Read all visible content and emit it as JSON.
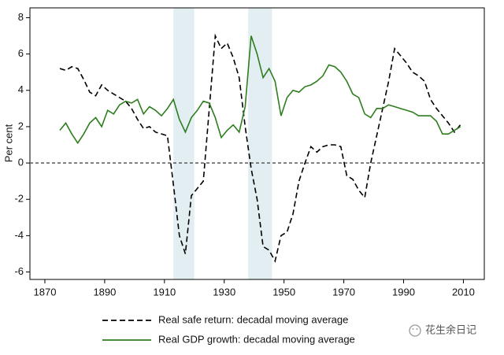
{
  "chart_data": {
    "type": "line",
    "y_label": "Per cent",
    "x": [
      1875,
      1877,
      1879,
      1881,
      1883,
      1885,
      1887,
      1889,
      1891,
      1893,
      1895,
      1897,
      1899,
      1901,
      1903,
      1905,
      1907,
      1909,
      1911,
      1913,
      1915,
      1917,
      1919,
      1921,
      1923,
      1925,
      1927,
      1929,
      1931,
      1933,
      1935,
      1937,
      1939,
      1941,
      1943,
      1945,
      1947,
      1949,
      1951,
      1953,
      1955,
      1957,
      1959,
      1961,
      1963,
      1965,
      1967,
      1969,
      1971,
      1973,
      1975,
      1977,
      1979,
      1981,
      1983,
      1985,
      1987,
      1989,
      1991,
      1993,
      1995,
      1997,
      1999,
      2001,
      2003,
      2005,
      2007,
      2009
    ],
    "series": [
      {
        "name": "Real safe return: decadal moving average",
        "color": "#000000",
        "dash": true,
        "values": [
          5.2,
          5.1,
          5.3,
          5.2,
          4.6,
          3.9,
          3.7,
          4.3,
          4.0,
          3.8,
          3.6,
          3.4,
          3.0,
          2.4,
          1.9,
          2.0,
          1.7,
          1.6,
          1.5,
          -1.2,
          -4.0,
          -5.0,
          -1.8,
          -1.4,
          -1.0,
          3.0,
          7.0,
          6.3,
          6.6,
          5.8,
          4.7,
          2.0,
          -0.3,
          -2.0,
          -4.6,
          -4.8,
          -5.4,
          -4.0,
          -3.8,
          -2.8,
          -1.0,
          0.0,
          0.9,
          0.6,
          0.9,
          1.0,
          1.0,
          0.9,
          -0.7,
          -0.9,
          -1.5,
          -1.9,
          0.0,
          1.5,
          3.0,
          4.5,
          6.3,
          5.9,
          5.5,
          5.0,
          4.8,
          4.5,
          3.5,
          3.0,
          2.6,
          2.2,
          1.7,
          2.1
        ]
      },
      {
        "name": "Real GDP growth: decadal moving average",
        "color": "#2e7d1f",
        "dash": false,
        "values": [
          1.8,
          2.2,
          1.6,
          1.1,
          1.6,
          2.2,
          2.5,
          2.0,
          2.9,
          2.7,
          3.2,
          3.4,
          3.3,
          3.5,
          2.7,
          3.1,
          2.9,
          2.6,
          3.0,
          3.5,
          2.4,
          1.7,
          2.5,
          2.9,
          3.4,
          3.3,
          2.5,
          1.4,
          1.8,
          2.1,
          1.7,
          3.1,
          7.0,
          6.0,
          4.7,
          5.2,
          4.5,
          2.6,
          3.6,
          4.0,
          3.9,
          4.2,
          4.3,
          4.5,
          4.8,
          5.4,
          5.3,
          5.0,
          4.5,
          3.8,
          3.6,
          2.7,
          2.5,
          3.0,
          3.0,
          3.2,
          3.1,
          3.0,
          2.9,
          2.8,
          2.6,
          2.6,
          2.6,
          2.3,
          1.6,
          1.6,
          1.8,
          2.0
        ]
      }
    ],
    "shaded_periods": [
      [
        1913,
        1920
      ],
      [
        1938,
        1946
      ]
    ],
    "shade_color": "#e3eef2",
    "reference_line": 0,
    "xlim": [
      1865,
      2017
    ],
    "ylim": [
      -6.41,
      8.54
    ],
    "xticks": [
      1870,
      1890,
      1910,
      1930,
      1950,
      1970,
      1990,
      2010
    ],
    "yticks": [
      -6,
      -4,
      -2,
      0,
      2,
      4,
      6,
      8
    ],
    "watermark": "花生余日记"
  }
}
